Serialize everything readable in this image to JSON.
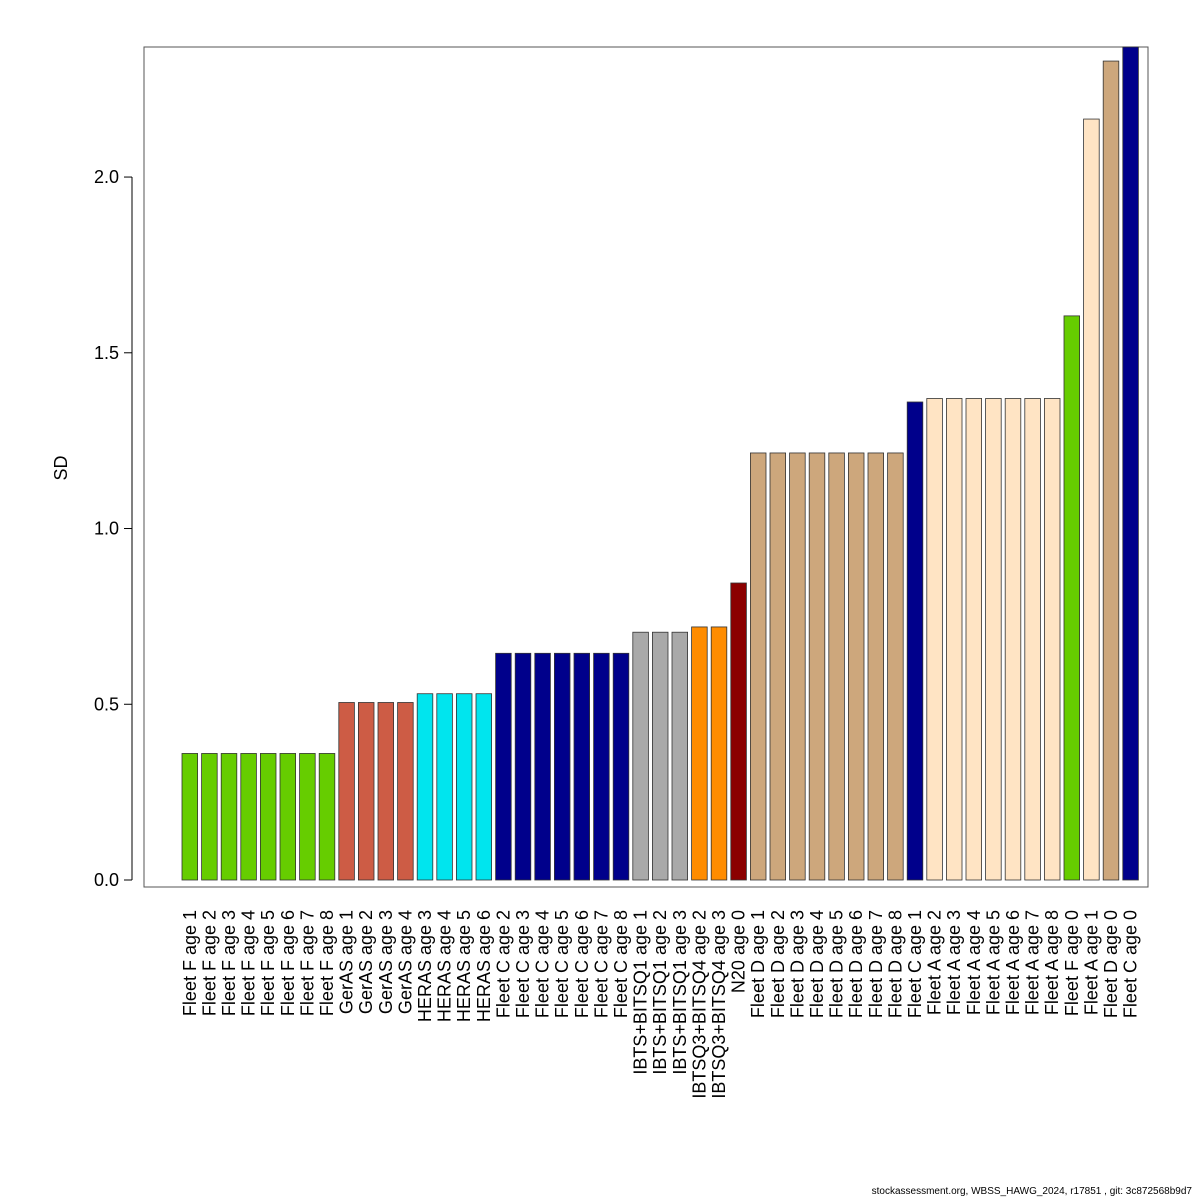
{
  "chart_data": {
    "type": "bar",
    "title": "",
    "xlabel": "",
    "ylabel": "SD",
    "ylim": [
      0,
      2.37
    ],
    "yticks": [
      0.0,
      0.5,
      1.0,
      1.5,
      2.0
    ],
    "ytick_labels": [
      "0.0",
      "0.5",
      "1.0",
      "1.5",
      "2.0"
    ],
    "grid": false,
    "categories": [
      "Fleet F age 1",
      "Fleet F age 2",
      "Fleet F age 3",
      "Fleet F age 4",
      "Fleet F age 5",
      "Fleet F age 6",
      "Fleet F age 7",
      "Fleet F age 8",
      "GerAS age 1",
      "GerAS age 2",
      "GerAS age 3",
      "GerAS age 4",
      "HERAS age 3",
      "HERAS age 4",
      "HERAS age 5",
      "HERAS age 6",
      "Fleet C age 2",
      "Fleet C age 3",
      "Fleet C age 4",
      "Fleet C age 5",
      "Fleet C age 6",
      "Fleet C age 7",
      "Fleet C age 8",
      "IBTS+BITSQ1 age 1",
      "IBTS+BITSQ1 age 2",
      "IBTS+BITSQ1 age 3",
      "IBTSQ3+BITSQ4 age 2",
      "IBTSQ3+BITSQ4 age 3",
      "N20 age 0",
      "Fleet D age 1",
      "Fleet D age 2",
      "Fleet D age 3",
      "Fleet D age 4",
      "Fleet D age 5",
      "Fleet D age 6",
      "Fleet D age 7",
      "Fleet D age 8",
      "Fleet C age 1",
      "Fleet A age 2",
      "Fleet A age 3",
      "Fleet A age 4",
      "Fleet A age 5",
      "Fleet A age 6",
      "Fleet A age 7",
      "Fleet A age 8",
      "Fleet F age 0",
      "Fleet A age 1",
      "Fleet D age 0",
      "Fleet C age 0"
    ],
    "values": [
      0.36,
      0.36,
      0.36,
      0.36,
      0.36,
      0.36,
      0.36,
      0.36,
      0.505,
      0.505,
      0.505,
      0.505,
      0.53,
      0.53,
      0.53,
      0.53,
      0.645,
      0.645,
      0.645,
      0.645,
      0.645,
      0.645,
      0.645,
      0.705,
      0.705,
      0.705,
      0.72,
      0.72,
      0.845,
      1.215,
      1.215,
      1.215,
      1.215,
      1.215,
      1.215,
      1.215,
      1.215,
      1.36,
      1.37,
      1.37,
      1.37,
      1.37,
      1.37,
      1.37,
      1.37,
      1.605,
      2.165,
      2.33,
      2.37
    ],
    "colors": [
      "#66cd00",
      "#66cd00",
      "#66cd00",
      "#66cd00",
      "#66cd00",
      "#66cd00",
      "#66cd00",
      "#66cd00",
      "#cd5c45",
      "#cd5c45",
      "#cd5c45",
      "#cd5c45",
      "#00e5ee",
      "#00e5ee",
      "#00e5ee",
      "#00e5ee",
      "#00008b",
      "#00008b",
      "#00008b",
      "#00008b",
      "#00008b",
      "#00008b",
      "#00008b",
      "#a9a9a9",
      "#a9a9a9",
      "#a9a9a9",
      "#ff8c00",
      "#ff8c00",
      "#8b0000",
      "#cda77c",
      "#cda77c",
      "#cda77c",
      "#cda77c",
      "#cda77c",
      "#cda77c",
      "#cda77c",
      "#cda77c",
      "#00008b",
      "#ffe4c4",
      "#ffe4c4",
      "#ffe4c4",
      "#ffe4c4",
      "#ffe4c4",
      "#ffe4c4",
      "#ffe4c4",
      "#66cd00",
      "#ffe4c4",
      "#cda77c",
      "#00008b"
    ]
  },
  "footer": {
    "text": "stockassessment.org, WBSS_HAWG_2024, r17851 , git: 3c872568b9d7"
  }
}
